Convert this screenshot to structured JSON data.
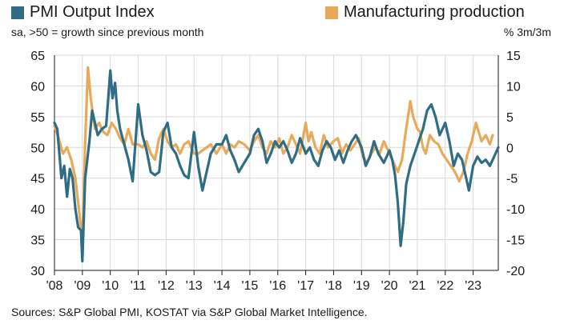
{
  "legend": {
    "pmi_label": "PMI Output Index",
    "prod_label": "Manufacturing production"
  },
  "subtitle_left": "sa, >50 = growth since previous month",
  "subtitle_right": "% 3m/3m",
  "source": "Sources: S&P Global PMI, KOSTAT via S&P Global Market Intelligence.",
  "colors": {
    "pmi": "#2e6d84",
    "production": "#e8a95b",
    "grid": "#d9d9d9",
    "axis": "#1a1a1a"
  },
  "chart_data": {
    "type": "line",
    "x_unit": "year (fractional)",
    "xlim": [
      2008,
      2023.9
    ],
    "x_tick_labels": [
      "'08",
      "'09",
      "'10",
      "'11",
      "'12",
      "'13",
      "'14",
      "'15",
      "'16",
      "'17",
      "'18",
      "'19",
      "'20",
      "'21",
      "'22",
      "'23"
    ],
    "left_axis": {
      "ylim": [
        30,
        65
      ],
      "ticks": [
        30,
        35,
        40,
        45,
        50,
        55,
        60,
        65
      ]
    },
    "right_axis": {
      "ylim": [
        -20,
        15
      ],
      "ticks": [
        -20,
        -15,
        -10,
        -5,
        0,
        5,
        10,
        15
      ]
    },
    "grid": true,
    "legend_position": "top",
    "series": [
      {
        "name": "PMI Output Index",
        "axis": "left",
        "x": [
          2008.0,
          2008.1,
          2008.25,
          2008.35,
          2008.45,
          2008.55,
          2008.65,
          2008.75,
          2008.85,
          2008.95,
          2009.0,
          2009.1,
          2009.25,
          2009.35,
          2009.45,
          2009.55,
          2009.7,
          2009.85,
          2010.0,
          2010.08,
          2010.17,
          2010.25,
          2010.35,
          2010.5,
          2010.65,
          2010.8,
          2011.0,
          2011.15,
          2011.3,
          2011.45,
          2011.6,
          2011.75,
          2011.9,
          2012.05,
          2012.2,
          2012.35,
          2012.5,
          2012.65,
          2012.8,
          2013.0,
          2013.15,
          2013.3,
          2013.45,
          2013.6,
          2013.8,
          2014.0,
          2014.15,
          2014.3,
          2014.45,
          2014.6,
          2014.8,
          2015.0,
          2015.15,
          2015.3,
          2015.45,
          2015.6,
          2015.75,
          2015.9,
          2016.05,
          2016.2,
          2016.35,
          2016.5,
          2016.65,
          2016.8,
          2017.0,
          2017.15,
          2017.3,
          2017.45,
          2017.6,
          2017.75,
          2017.9,
          2018.05,
          2018.2,
          2018.35,
          2018.5,
          2018.65,
          2018.8,
          2019.0,
          2019.15,
          2019.3,
          2019.45,
          2019.6,
          2019.8,
          2020.0,
          2020.1,
          2020.2,
          2020.3,
          2020.4,
          2020.5,
          2020.6,
          2020.75,
          2020.9,
          2021.05,
          2021.2,
          2021.35,
          2021.5,
          2021.65,
          2021.8,
          2022.0,
          2022.15,
          2022.3,
          2022.45,
          2022.6,
          2022.75,
          2022.85,
          2023.0,
          2023.15,
          2023.3,
          2023.45,
          2023.6,
          2023.75,
          2023.9
        ],
        "values": [
          54,
          53,
          45,
          47,
          42,
          46.5,
          45,
          40,
          37,
          36.5,
          31.5,
          45,
          51,
          56,
          54,
          52,
          53,
          53.5,
          62.5,
          58,
          60.5,
          56,
          53,
          50.5,
          48,
          44.5,
          57,
          52,
          49.5,
          46,
          45.5,
          46,
          52.5,
          54,
          50,
          49,
          47,
          45.5,
          45,
          52.5,
          47,
          43,
          46,
          49,
          50.5,
          50.5,
          52,
          49.5,
          48,
          46,
          47.5,
          49,
          52,
          53,
          51,
          47.5,
          49,
          51,
          50,
          51,
          49.5,
          47.5,
          49,
          51.5,
          49,
          50,
          48,
          47,
          49.5,
          51,
          50,
          48,
          49.5,
          47.5,
          49.5,
          51,
          52,
          50,
          47,
          48.5,
          51,
          49,
          47.5,
          49.5,
          48,
          45.5,
          41,
          34,
          38,
          44,
          47,
          49,
          51,
          53,
          56,
          57,
          55,
          52,
          54,
          51,
          47,
          49,
          48,
          45,
          43,
          47,
          48.5,
          47.5,
          48,
          47,
          48.5,
          50
        ],
        "line_color": "#2e6d84"
      },
      {
        "name": "Manufacturing production",
        "axis": "right",
        "x": [
          2008.0,
          2008.15,
          2008.3,
          2008.45,
          2008.6,
          2008.75,
          2008.85,
          2008.95,
          2009.0,
          2009.1,
          2009.2,
          2009.3,
          2009.45,
          2009.6,
          2009.75,
          2009.9,
          2010.05,
          2010.2,
          2010.35,
          2010.5,
          2010.65,
          2010.8,
          2011.0,
          2011.15,
          2011.3,
          2011.45,
          2011.6,
          2011.75,
          2011.9,
          2012.05,
          2012.2,
          2012.35,
          2012.5,
          2012.65,
          2012.8,
          2013.0,
          2013.15,
          2013.3,
          2013.45,
          2013.6,
          2013.8,
          2014.0,
          2014.15,
          2014.3,
          2014.45,
          2014.6,
          2014.8,
          2015.0,
          2015.15,
          2015.3,
          2015.45,
          2015.6,
          2015.75,
          2015.9,
          2016.05,
          2016.2,
          2016.35,
          2016.5,
          2016.65,
          2016.8,
          2017.0,
          2017.1,
          2017.2,
          2017.35,
          2017.5,
          2017.65,
          2017.8,
          2018.0,
          2018.15,
          2018.3,
          2018.45,
          2018.6,
          2018.75,
          2018.9,
          2019.05,
          2019.2,
          2019.35,
          2019.5,
          2019.65,
          2019.8,
          2020.0,
          2020.15,
          2020.3,
          2020.45,
          2020.6,
          2020.75,
          2020.85,
          2021.0,
          2021.1,
          2021.2,
          2021.3,
          2021.45,
          2021.6,
          2021.75,
          2021.9,
          2022.05,
          2022.2,
          2022.35,
          2022.5,
          2022.65,
          2022.8,
          2022.95,
          2023.1,
          2023.2,
          2023.3,
          2023.45,
          2023.6,
          2023.7
        ],
        "values": [
          3.5,
          1.5,
          -1,
          0,
          -2,
          -5,
          -9,
          -13,
          -16,
          1,
          13,
          8,
          3,
          4,
          2.5,
          2,
          4,
          3,
          1.5,
          0.5,
          3,
          0.5,
          0.5,
          0,
          1,
          -1,
          -2,
          1.5,
          3,
          1,
          0,
          0.5,
          -1,
          0.5,
          1,
          -1,
          -1,
          -0.5,
          0,
          0.5,
          -1,
          0.5,
          -1,
          0.5,
          0,
          1,
          0.5,
          -0.5,
          1,
          2,
          0,
          -1,
          1,
          0,
          1.5,
          -1,
          0,
          2,
          0.5,
          -1,
          4,
          1,
          2.5,
          0,
          -1,
          2,
          0,
          1,
          1.5,
          -1,
          0.5,
          -0.5,
          0.5,
          1.5,
          -1.5,
          -2.5,
          -1,
          0,
          -1,
          1,
          -1,
          -2.5,
          -4,
          -2,
          3,
          7.5,
          5,
          3,
          2.5,
          0,
          -1,
          2,
          1,
          0.5,
          -1,
          -2,
          -3,
          -4,
          -5.5,
          -4,
          -1,
          1,
          4,
          2.5,
          1,
          2,
          0.5,
          2
        ],
        "line_color": "#e8a95b"
      }
    ]
  }
}
